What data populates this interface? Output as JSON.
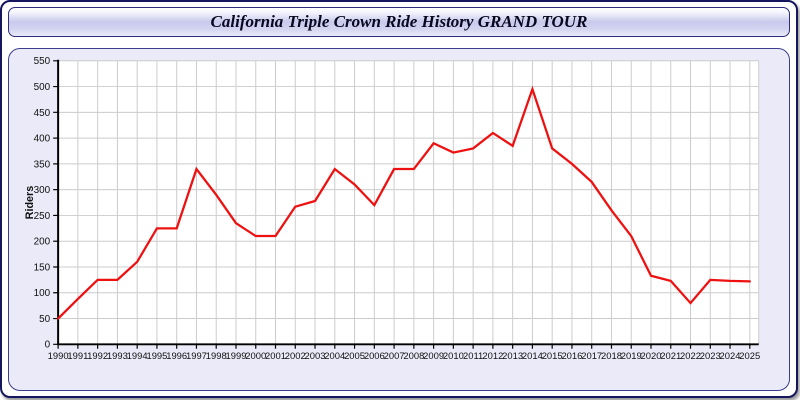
{
  "window": {
    "title": "California Triple Crown Ride History GRAND TOUR"
  },
  "colors": {
    "window_border": "#16165f",
    "titlebar_gradient_mid": "#c9c9ec",
    "panel_background": "#eaeaf8",
    "panel_border": "#3c3c8c",
    "plot_background": "#ffffff",
    "gridline": "#cccccc",
    "axis": "#000000",
    "tick_label": "#111111",
    "line": "#ee1111"
  },
  "chart_data": {
    "type": "line",
    "title": "California Triple Crown Ride History GRAND TOUR",
    "xlabel": "",
    "ylabel": "Riders",
    "legend_position": "none",
    "grid": true,
    "ylim": [
      0,
      550
    ],
    "ytick_step": 50,
    "x": [
      1990,
      1991,
      1992,
      1993,
      1994,
      1995,
      1996,
      1997,
      1998,
      1999,
      2000,
      2001,
      2002,
      2003,
      2004,
      2005,
      2006,
      2007,
      2008,
      2009,
      2010,
      2011,
      2012,
      2013,
      2014,
      2015,
      2016,
      2017,
      2018,
      2019,
      2020,
      2021,
      2022,
      2023,
      2024,
      2025
    ],
    "series": [
      {
        "name": "Riders",
        "color": "#ee1111",
        "values": [
          50,
          88,
          125,
          125,
          160,
          225,
          225,
          340,
          290,
          235,
          210,
          210,
          267,
          278,
          340,
          310,
          270,
          340,
          340,
          390,
          372,
          380,
          410,
          385,
          495,
          380,
          350,
          315,
          260,
          210,
          133,
          123,
          80,
          125,
          123,
          122
        ]
      }
    ]
  }
}
